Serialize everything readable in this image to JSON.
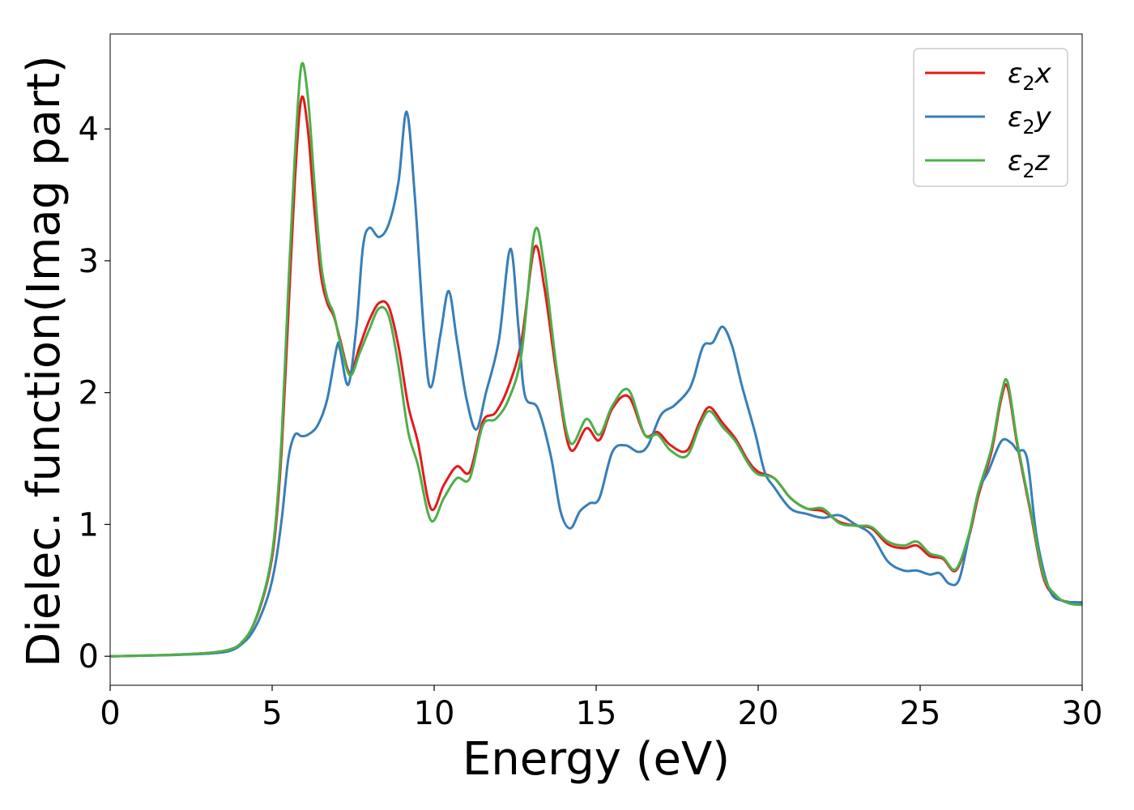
{
  "chart_data": {
    "type": "line",
    "title": "",
    "xlabel": "Energy (eV)",
    "ylabel": "Dielec. function(Imag part)",
    "xlim": [
      0,
      30
    ],
    "ylim": [
      -0.22,
      4.72
    ],
    "x_ticks": [
      0,
      5,
      10,
      15,
      20,
      25,
      30
    ],
    "y_ticks": [
      0,
      1,
      2,
      3,
      4
    ],
    "grid": false,
    "legend_position": "top-right",
    "series": [
      {
        "name": "ε2x",
        "legend_parts": {
          "base": "ε",
          "sub": "2",
          "axis": "x"
        },
        "color": "#e41a1c",
        "points": [
          [
            0,
            0.0
          ],
          [
            1,
            0.005
          ],
          [
            2,
            0.012
          ],
          [
            3,
            0.025
          ],
          [
            3.5,
            0.04
          ],
          [
            3.8,
            0.06
          ],
          [
            4.0,
            0.09
          ],
          [
            4.3,
            0.18
          ],
          [
            4.6,
            0.35
          ],
          [
            4.9,
            0.62
          ],
          [
            5.1,
            0.95
          ],
          [
            5.3,
            1.6
          ],
          [
            5.5,
            2.6
          ],
          [
            5.7,
            3.6
          ],
          [
            5.9,
            4.23
          ],
          [
            6.1,
            4.0
          ],
          [
            6.3,
            3.4
          ],
          [
            6.5,
            2.9
          ],
          [
            6.7,
            2.68
          ],
          [
            6.9,
            2.58
          ],
          [
            7.1,
            2.4
          ],
          [
            7.4,
            2.15
          ],
          [
            7.7,
            2.35
          ],
          [
            8.0,
            2.55
          ],
          [
            8.3,
            2.68
          ],
          [
            8.6,
            2.65
          ],
          [
            8.9,
            2.35
          ],
          [
            9.2,
            1.9
          ],
          [
            9.5,
            1.62
          ],
          [
            9.9,
            1.12
          ],
          [
            10.3,
            1.3
          ],
          [
            10.7,
            1.44
          ],
          [
            11.1,
            1.4
          ],
          [
            11.5,
            1.78
          ],
          [
            11.9,
            1.85
          ],
          [
            12.3,
            2.05
          ],
          [
            12.7,
            2.4
          ],
          [
            13.1,
            3.1
          ],
          [
            13.4,
            2.8
          ],
          [
            13.8,
            2.1
          ],
          [
            14.2,
            1.57
          ],
          [
            14.7,
            1.73
          ],
          [
            15.1,
            1.64
          ],
          [
            15.5,
            1.88
          ],
          [
            16.0,
            1.97
          ],
          [
            16.5,
            1.68
          ],
          [
            16.9,
            1.7
          ],
          [
            17.3,
            1.6
          ],
          [
            17.8,
            1.56
          ],
          [
            18.2,
            1.78
          ],
          [
            18.5,
            1.89
          ],
          [
            18.9,
            1.77
          ],
          [
            19.3,
            1.65
          ],
          [
            19.7,
            1.48
          ],
          [
            20.0,
            1.4
          ],
          [
            20.5,
            1.35
          ],
          [
            21.0,
            1.2
          ],
          [
            21.5,
            1.12
          ],
          [
            22.0,
            1.1
          ],
          [
            22.5,
            1.02
          ],
          [
            23.0,
            0.99
          ],
          [
            23.5,
            0.97
          ],
          [
            24.0,
            0.85
          ],
          [
            24.5,
            0.82
          ],
          [
            24.9,
            0.84
          ],
          [
            25.3,
            0.76
          ],
          [
            25.7,
            0.74
          ],
          [
            26.1,
            0.65
          ],
          [
            26.5,
            0.9
          ],
          [
            26.8,
            1.22
          ],
          [
            27.2,
            1.55
          ],
          [
            27.5,
            1.95
          ],
          [
            27.7,
            2.04
          ],
          [
            28.0,
            1.6
          ],
          [
            28.4,
            1.1
          ],
          [
            28.8,
            0.6
          ],
          [
            29.2,
            0.45
          ],
          [
            29.6,
            0.41
          ],
          [
            30.0,
            0.4
          ]
        ]
      },
      {
        "name": "ε2y",
        "legend_parts": {
          "base": "ε",
          "sub": "2",
          "axis": "y"
        },
        "color": "#377eb8",
        "points": [
          [
            0,
            0.0
          ],
          [
            1,
            0.004
          ],
          [
            2,
            0.01
          ],
          [
            3,
            0.02
          ],
          [
            3.5,
            0.03
          ],
          [
            3.8,
            0.05
          ],
          [
            4.0,
            0.08
          ],
          [
            4.3,
            0.15
          ],
          [
            4.6,
            0.28
          ],
          [
            4.9,
            0.48
          ],
          [
            5.1,
            0.7
          ],
          [
            5.3,
            1.05
          ],
          [
            5.5,
            1.5
          ],
          [
            5.7,
            1.68
          ],
          [
            5.9,
            1.67
          ],
          [
            6.1,
            1.68
          ],
          [
            6.4,
            1.75
          ],
          [
            6.7,
            1.95
          ],
          [
            7.0,
            2.35
          ],
          [
            7.1,
            2.32
          ],
          [
            7.35,
            2.06
          ],
          [
            7.6,
            2.5
          ],
          [
            7.8,
            3.1
          ],
          [
            8.0,
            3.25
          ],
          [
            8.3,
            3.18
          ],
          [
            8.6,
            3.28
          ],
          [
            8.9,
            3.6
          ],
          [
            9.15,
            4.13
          ],
          [
            9.4,
            3.5
          ],
          [
            9.7,
            2.4
          ],
          [
            9.9,
            2.04
          ],
          [
            10.2,
            2.45
          ],
          [
            10.45,
            2.77
          ],
          [
            10.7,
            2.4
          ],
          [
            11.0,
            1.95
          ],
          [
            11.3,
            1.72
          ],
          [
            11.6,
            2.0
          ],
          [
            12.0,
            2.4
          ],
          [
            12.35,
            3.09
          ],
          [
            12.6,
            2.5
          ],
          [
            12.8,
            1.98
          ],
          [
            13.2,
            1.88
          ],
          [
            13.6,
            1.52
          ],
          [
            13.9,
            1.1
          ],
          [
            14.2,
            0.97
          ],
          [
            14.5,
            1.1
          ],
          [
            14.8,
            1.16
          ],
          [
            15.1,
            1.2
          ],
          [
            15.5,
            1.55
          ],
          [
            15.9,
            1.6
          ],
          [
            16.3,
            1.55
          ],
          [
            16.6,
            1.6
          ],
          [
            17.0,
            1.83
          ],
          [
            17.4,
            1.9
          ],
          [
            17.8,
            2.0
          ],
          [
            18.0,
            2.1
          ],
          [
            18.3,
            2.35
          ],
          [
            18.6,
            2.38
          ],
          [
            18.9,
            2.5
          ],
          [
            19.2,
            2.35
          ],
          [
            19.5,
            2.05
          ],
          [
            19.9,
            1.7
          ],
          [
            20.2,
            1.4
          ],
          [
            20.5,
            1.28
          ],
          [
            21.0,
            1.12
          ],
          [
            21.5,
            1.08
          ],
          [
            22.0,
            1.05
          ],
          [
            22.5,
            1.07
          ],
          [
            23.0,
            1.0
          ],
          [
            23.5,
            0.92
          ],
          [
            24.0,
            0.72
          ],
          [
            24.5,
            0.65
          ],
          [
            24.9,
            0.65
          ],
          [
            25.3,
            0.62
          ],
          [
            25.6,
            0.63
          ],
          [
            25.9,
            0.55
          ],
          [
            26.2,
            0.58
          ],
          [
            26.5,
            0.9
          ],
          [
            26.8,
            1.25
          ],
          [
            27.1,
            1.4
          ],
          [
            27.5,
            1.63
          ],
          [
            27.8,
            1.62
          ],
          [
            28.0,
            1.56
          ],
          [
            28.3,
            1.5
          ],
          [
            28.6,
            0.9
          ],
          [
            29.0,
            0.5
          ],
          [
            29.4,
            0.42
          ],
          [
            29.8,
            0.41
          ],
          [
            30.0,
            0.41
          ]
        ]
      },
      {
        "name": "ε2z",
        "legend_parts": {
          "base": "ε",
          "sub": "2",
          "axis": "z"
        },
        "color": "#4daf4a",
        "points": [
          [
            0,
            0.0
          ],
          [
            1,
            0.005
          ],
          [
            2,
            0.012
          ],
          [
            3,
            0.025
          ],
          [
            3.5,
            0.04
          ],
          [
            3.8,
            0.06
          ],
          [
            4.0,
            0.09
          ],
          [
            4.3,
            0.18
          ],
          [
            4.6,
            0.36
          ],
          [
            4.9,
            0.64
          ],
          [
            5.1,
            1.0
          ],
          [
            5.3,
            1.7
          ],
          [
            5.5,
            2.8
          ],
          [
            5.7,
            3.8
          ],
          [
            5.9,
            4.48
          ],
          [
            6.1,
            4.25
          ],
          [
            6.3,
            3.6
          ],
          [
            6.5,
            3.0
          ],
          [
            6.7,
            2.72
          ],
          [
            6.9,
            2.6
          ],
          [
            7.1,
            2.38
          ],
          [
            7.4,
            2.13
          ],
          [
            7.7,
            2.3
          ],
          [
            8.0,
            2.48
          ],
          [
            8.3,
            2.64
          ],
          [
            8.6,
            2.58
          ],
          [
            8.9,
            2.2
          ],
          [
            9.2,
            1.7
          ],
          [
            9.5,
            1.45
          ],
          [
            9.9,
            1.03
          ],
          [
            10.3,
            1.2
          ],
          [
            10.7,
            1.35
          ],
          [
            11.1,
            1.35
          ],
          [
            11.5,
            1.75
          ],
          [
            11.9,
            1.8
          ],
          [
            12.3,
            1.95
          ],
          [
            12.7,
            2.3
          ],
          [
            13.1,
            3.22
          ],
          [
            13.4,
            2.95
          ],
          [
            13.8,
            2.15
          ],
          [
            14.2,
            1.62
          ],
          [
            14.7,
            1.8
          ],
          [
            15.1,
            1.68
          ],
          [
            15.5,
            1.9
          ],
          [
            16.0,
            2.02
          ],
          [
            16.5,
            1.68
          ],
          [
            16.9,
            1.68
          ],
          [
            17.3,
            1.56
          ],
          [
            17.8,
            1.52
          ],
          [
            18.2,
            1.75
          ],
          [
            18.5,
            1.86
          ],
          [
            18.9,
            1.74
          ],
          [
            19.3,
            1.63
          ],
          [
            19.7,
            1.46
          ],
          [
            20.0,
            1.38
          ],
          [
            20.5,
            1.35
          ],
          [
            21.0,
            1.2
          ],
          [
            21.5,
            1.12
          ],
          [
            22.0,
            1.12
          ],
          [
            22.5,
            1.01
          ],
          [
            23.0,
            0.99
          ],
          [
            23.5,
            0.98
          ],
          [
            24.0,
            0.87
          ],
          [
            24.5,
            0.84
          ],
          [
            24.9,
            0.87
          ],
          [
            25.3,
            0.78
          ],
          [
            25.7,
            0.75
          ],
          [
            26.1,
            0.66
          ],
          [
            26.5,
            0.92
          ],
          [
            26.8,
            1.25
          ],
          [
            27.2,
            1.58
          ],
          [
            27.5,
            1.98
          ],
          [
            27.7,
            2.08
          ],
          [
            28.0,
            1.62
          ],
          [
            28.4,
            1.12
          ],
          [
            28.8,
            0.62
          ],
          [
            29.2,
            0.46
          ],
          [
            29.6,
            0.4
          ],
          [
            30.0,
            0.39
          ]
        ]
      }
    ]
  }
}
